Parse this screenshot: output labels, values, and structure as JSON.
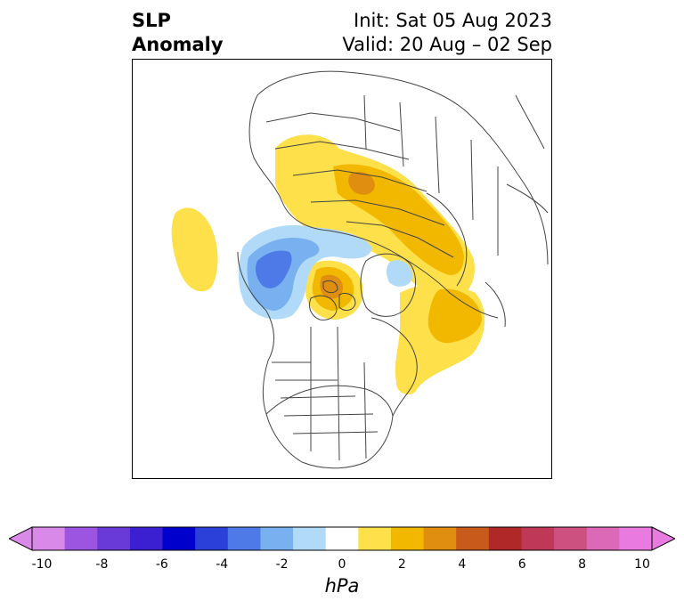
{
  "title": {
    "left_line1": "SLP",
    "left_line2": "Anomaly",
    "right_line1": "Init: Sat 05 Aug 2023",
    "right_line2": "Valid: 20 Aug – 02 Sep"
  },
  "colorbar": {
    "label": "hPa",
    "ticks": [
      "-10",
      "-8",
      "-6",
      "-4",
      "-2",
      "0",
      "2",
      "4",
      "6",
      "8",
      "10"
    ],
    "colors": [
      "#d98ae8",
      "#9b55e0",
      "#6a3ad8",
      "#3a20d0",
      "#0000cc",
      "#2a40d8",
      "#4e7ae8",
      "#78b0f0",
      "#b0daf8",
      "#ffffff",
      "#fde04a",
      "#f2b800",
      "#e08e10",
      "#c85a1c",
      "#b02828",
      "#c03858",
      "#cc5080",
      "#dc68b8",
      "#e87ae0"
    ],
    "extend_min_color": "#d98ae8",
    "extend_max_color": "#e87ae0"
  },
  "map": {
    "colors": {
      "positive_1": "#fde04a",
      "positive_2": "#f2b800",
      "positive_3": "#e08e10",
      "negative_1": "#b0daf8",
      "negative_2": "#78b0f0",
      "negative_3": "#4e7ae8",
      "coastline": "#444444"
    }
  }
}
